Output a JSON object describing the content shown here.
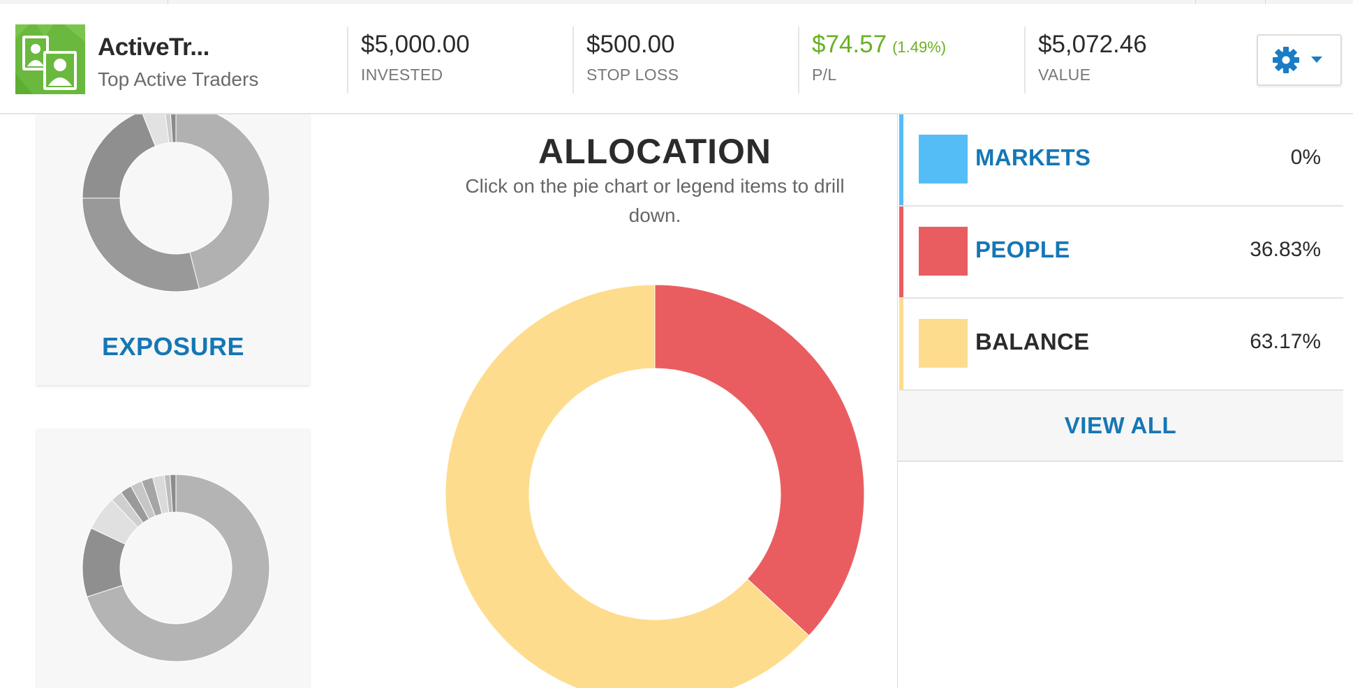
{
  "header": {
    "name": "ActiveTr...",
    "subtitle": "Top Active Traders",
    "stats": [
      {
        "value": "$5,000.00",
        "label": "INVESTED"
      },
      {
        "value": "$500.00",
        "label": "STOP LOSS"
      },
      {
        "value": "$74.57",
        "extra": "(1.49%)",
        "label": "P/L"
      },
      {
        "value": "$5,072.46",
        "label": "VALUE"
      }
    ]
  },
  "left": {
    "exposure_label": "EXPOSURE"
  },
  "allocation": {
    "title": "ALLOCATION",
    "subtitle": "Click on the pie chart or legend items to drill down."
  },
  "legend": {
    "items": [
      {
        "name": "MARKETS",
        "value": "0%",
        "color": "#55bdf6"
      },
      {
        "name": "PEOPLE",
        "value": "36.83%",
        "color": "#e95d61"
      },
      {
        "name": "BALANCE",
        "value": "63.17%",
        "color": "#fedc8d"
      }
    ],
    "view_all": "VIEW ALL"
  },
  "colors": {
    "accent": "#1577b5",
    "positive": "#6ab023",
    "avatar": "#6ab83e"
  },
  "chart_data": {
    "type": "pie",
    "title": "ALLOCATION",
    "categories": [
      "MARKETS",
      "PEOPLE",
      "BALANCE"
    ],
    "values": [
      0,
      36.83,
      63.17
    ],
    "colors": [
      "#55bdf6",
      "#e95d61",
      "#fedc8d"
    ]
  }
}
